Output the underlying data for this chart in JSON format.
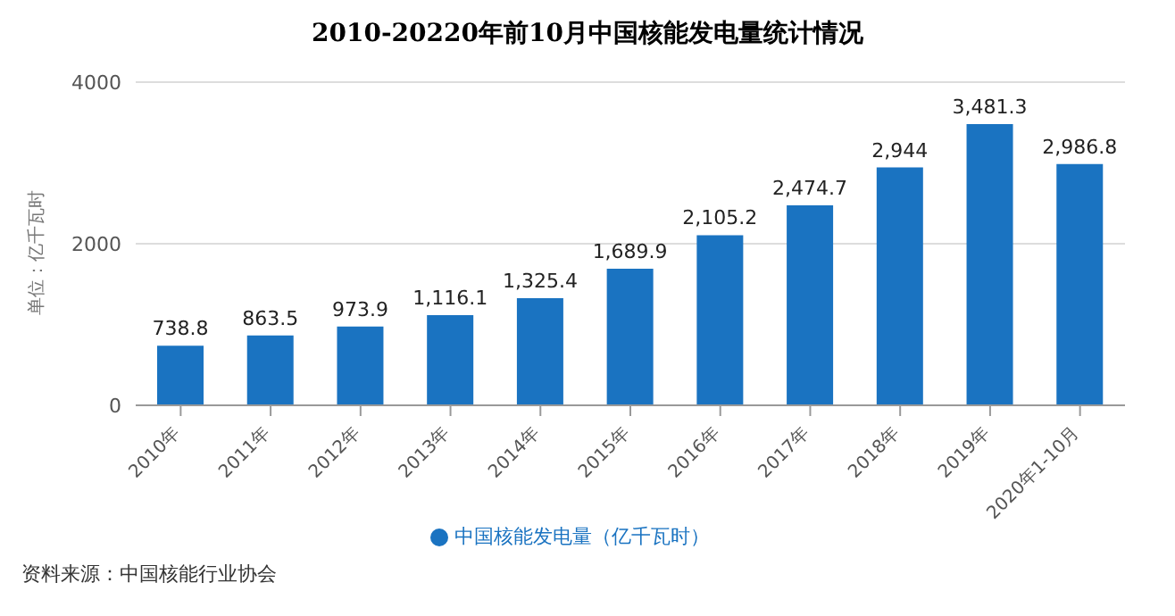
{
  "chart_data": {
    "type": "bar",
    "title": "2010-20220年前10月中国核能发电量统计情况",
    "ylabel": "单位：亿千瓦时",
    "categories": [
      "2010年",
      "2011年",
      "2012年",
      "2013年",
      "2014年",
      "2015年",
      "2016年",
      "2017年",
      "2018年",
      "2019年",
      "2020年1-10月"
    ],
    "series": [
      {
        "name": "中国核能发电量（亿千瓦时）",
        "color": "#1a73c1",
        "values": [
          738.8,
          863.5,
          973.9,
          1116.1,
          1325.4,
          1689.9,
          2105.2,
          2474.7,
          2944,
          3481.3,
          2986.8
        ],
        "value_labels": [
          "738.8",
          "863.5",
          "973.9",
          "1,116.1",
          "1,325.4",
          "1,689.9",
          "2,105.2",
          "2,474.7",
          "2,944",
          "3,481.3",
          "2,986.8"
        ]
      }
    ],
    "ylim": [
      0,
      4000
    ],
    "yticks": [
      0,
      2000,
      4000
    ],
    "grid": "y",
    "legend": "bottom",
    "annotations": [
      "资料来源：中国核能行业协会"
    ]
  }
}
